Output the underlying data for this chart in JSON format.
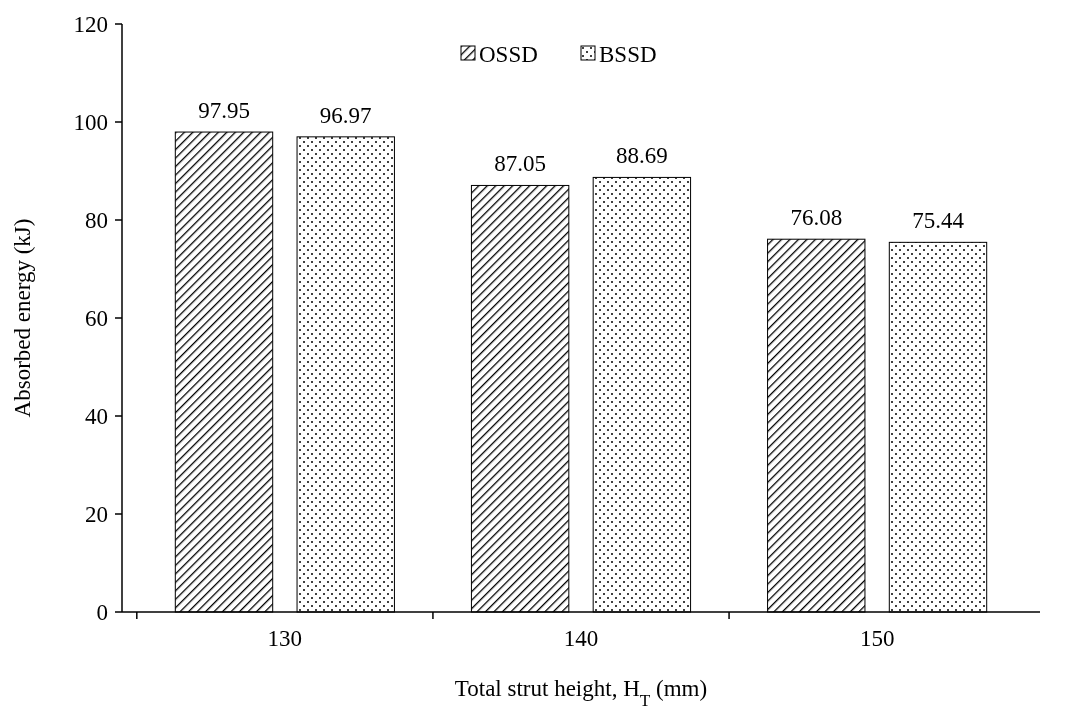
{
  "chart_data": {
    "type": "bar",
    "xlabel": "Total strut height, H$_{T}$ (mm)",
    "ylabel": "Absorbed energy (kJ)",
    "categories": [
      "130",
      "140",
      "150"
    ],
    "series": [
      {
        "name": "OSSD",
        "color": "#000000",
        "values": [
          97.95,
          87.05,
          76.08
        ]
      },
      {
        "name": "BSSD",
        "color": "#000000",
        "values": [
          96.97,
          88.69,
          75.44
        ]
      }
    ],
    "ylim": [
      0,
      120
    ],
    "yticks": [
      0,
      20,
      40,
      60,
      80,
      100,
      120
    ],
    "grid": false,
    "legend": "top",
    "data_labels": true
  }
}
